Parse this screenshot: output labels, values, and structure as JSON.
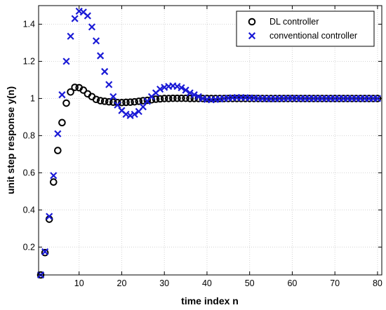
{
  "chart_data": {
    "type": "scatter",
    "xlabel": "time index n",
    "ylabel": "unit step response y(n)",
    "xlim": [
      0.5,
      81
    ],
    "ylim": [
      0.05,
      1.5
    ],
    "xticks": [
      10,
      20,
      30,
      40,
      50,
      60,
      70,
      80
    ],
    "yticks": [
      0.2,
      0.4,
      0.6,
      0.8,
      1,
      1.2,
      1.4
    ],
    "grid": true,
    "legend_position": "top-right",
    "series": [
      {
        "name": "DL controller",
        "marker": "circle",
        "color": "#000000",
        "x": [
          1,
          2,
          3,
          4,
          5,
          6,
          7,
          8,
          9,
          10,
          11,
          12,
          13,
          14,
          15,
          16,
          17,
          18,
          19,
          20,
          21,
          22,
          23,
          24,
          25,
          26,
          27,
          28,
          29,
          30,
          31,
          32,
          33,
          34,
          35,
          36,
          37,
          38,
          39,
          40,
          41,
          42,
          43,
          44,
          45,
          46,
          47,
          48,
          49,
          50,
          51,
          52,
          53,
          54,
          55,
          56,
          57,
          58,
          59,
          60,
          61,
          62,
          63,
          64,
          65,
          66,
          67,
          68,
          69,
          70,
          71,
          72,
          73,
          74,
          75,
          76,
          77,
          78,
          79,
          80
        ],
        "y": [
          0.05,
          0.17,
          0.35,
          0.55,
          0.72,
          0.87,
          0.975,
          1.035,
          1.06,
          1.058,
          1.045,
          1.025,
          1.01,
          0.995,
          0.988,
          0.985,
          0.982,
          0.98,
          0.978,
          0.978,
          0.979,
          0.98,
          0.982,
          0.985,
          0.988,
          0.99,
          0.993,
          0.996,
          0.998,
          1.0,
          1.0,
          1.001,
          1.001,
          1.001,
          1.001,
          1.0,
          1.0,
          1.0,
          1.0,
          1.0,
          1.0,
          1.0,
          1.0,
          1.0,
          1.0,
          1.0,
          1.0,
          1.0,
          1.0,
          1.0,
          1.0,
          1.0,
          1.0,
          1.0,
          1.0,
          1.0,
          1.0,
          1.0,
          1.0,
          1.0,
          1.0,
          1.0,
          1.0,
          1.0,
          1.0,
          1.0,
          1.0,
          1.0,
          1.0,
          1.0,
          1.0,
          1.0,
          1.0,
          1.0,
          1.0,
          1.0,
          1.0,
          1.0,
          1.0,
          1.0
        ]
      },
      {
        "name": "conventional controller",
        "marker": "x",
        "color": "#1a1ad6",
        "x": [
          1,
          2,
          3,
          4,
          5,
          6,
          7,
          8,
          9,
          10,
          11,
          12,
          13,
          14,
          15,
          16,
          17,
          18,
          19,
          20,
          21,
          22,
          23,
          24,
          25,
          26,
          27,
          28,
          29,
          30,
          31,
          32,
          33,
          34,
          35,
          36,
          37,
          38,
          39,
          40,
          41,
          42,
          43,
          44,
          45,
          46,
          47,
          48,
          49,
          50,
          51,
          52,
          53,
          54,
          55,
          56,
          57,
          58,
          59,
          60,
          61,
          62,
          63,
          64,
          65,
          66,
          67,
          68,
          69,
          70,
          71,
          72,
          73,
          74,
          75,
          76,
          77,
          78,
          79,
          80
        ],
        "y": [
          0.05,
          0.175,
          0.365,
          0.585,
          0.81,
          1.02,
          1.2,
          1.335,
          1.43,
          1.47,
          1.465,
          1.445,
          1.385,
          1.31,
          1.23,
          1.145,
          1.075,
          1.01,
          0.965,
          0.935,
          0.915,
          0.908,
          0.915,
          0.93,
          0.955,
          0.985,
          1.01,
          1.03,
          1.05,
          1.06,
          1.065,
          1.068,
          1.065,
          1.058,
          1.045,
          1.03,
          1.02,
          1.01,
          1.0,
          0.995,
          0.993,
          0.995,
          0.997,
          1.0,
          1.002,
          1.004,
          1.005,
          1.005,
          1.004,
          1.003,
          1.002,
          1.0,
          1.0,
          0.999,
          0.999,
          0.999,
          1.0,
          1.0,
          1.001,
          1.001,
          1.001,
          1.0,
          1.0,
          1.0,
          1.0,
          1.0,
          1.0,
          1.0,
          1.0,
          1.0,
          1.0,
          1.0,
          1.0,
          1.0,
          1.0,
          1.0,
          1.0,
          1.0,
          1.0,
          1.0
        ]
      }
    ]
  }
}
